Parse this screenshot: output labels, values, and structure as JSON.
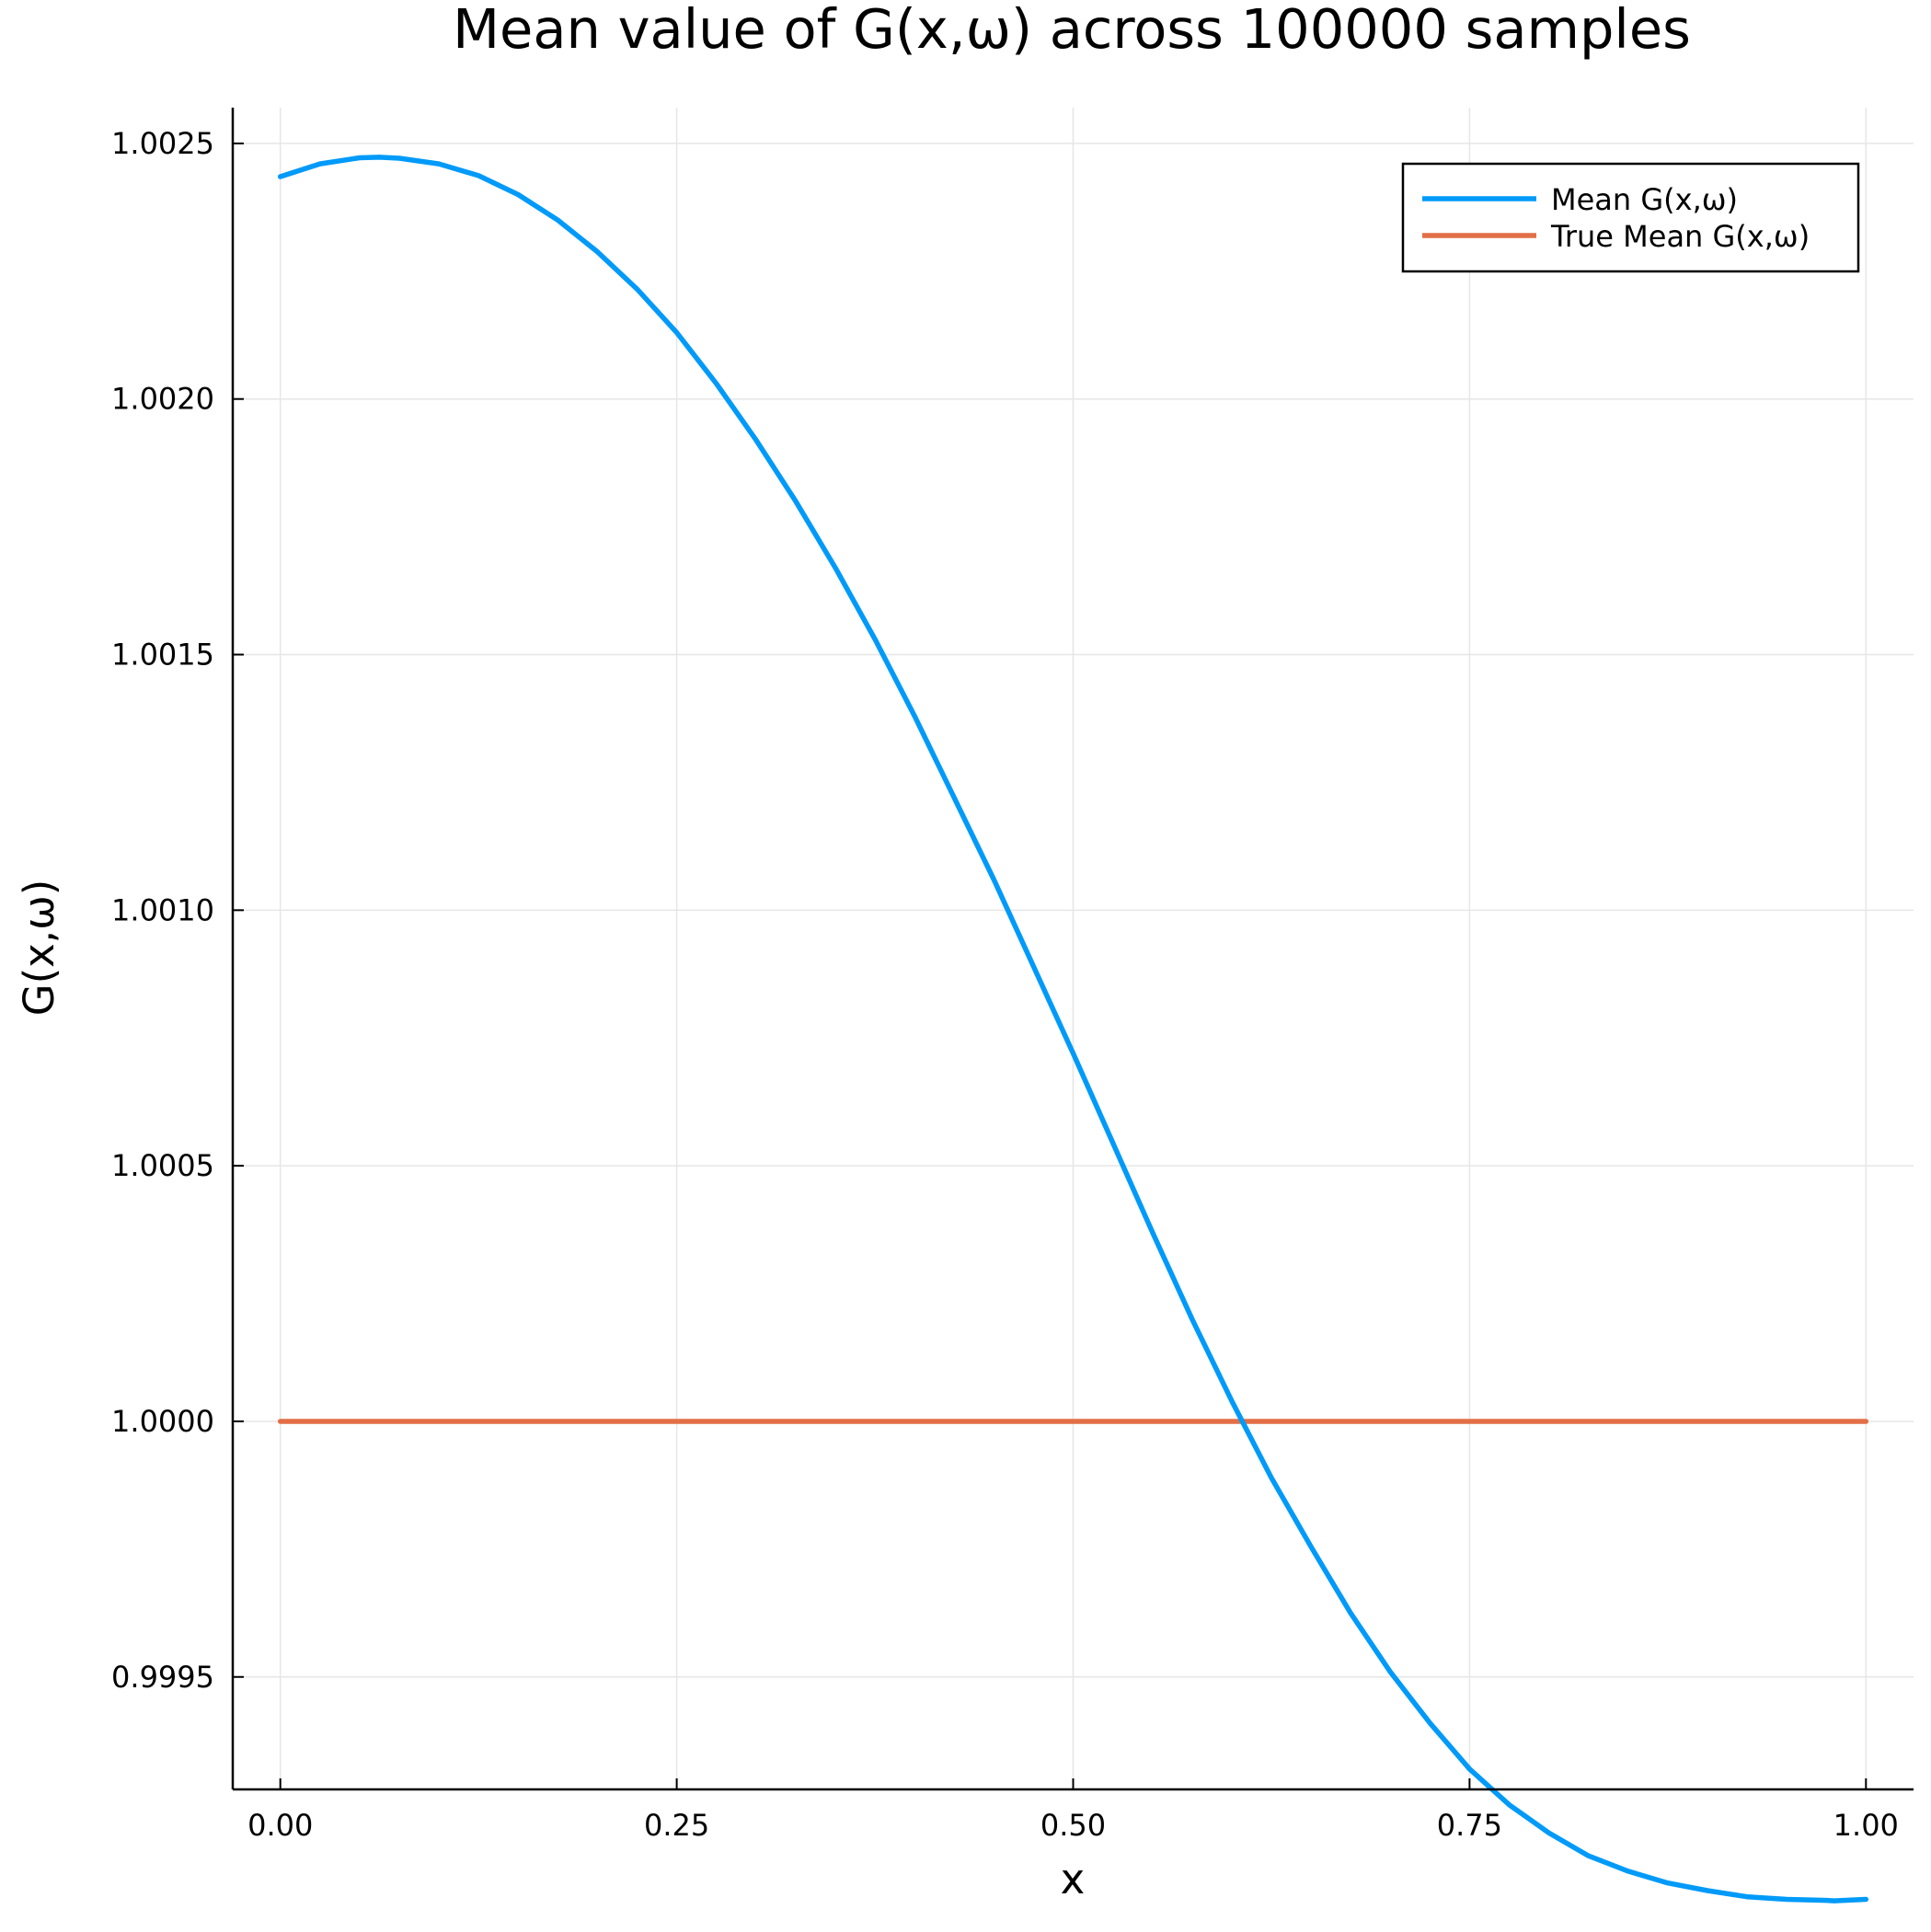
{
  "chart_data": {
    "type": "line",
    "title": "Mean value of G(x,ω) across 100000 samples",
    "xlabel": "x",
    "ylabel": "G(x,ω)",
    "xlim": [
      -0.03,
      1.03
    ],
    "ylim": [
      0.99928,
      1.00257
    ],
    "xticks": [
      0.0,
      0.25,
      0.5,
      0.75,
      1.0
    ],
    "xtick_labels": [
      "0.00",
      "0.25",
      "0.50",
      "0.75",
      "1.00"
    ],
    "yticks": [
      0.9995,
      1.0,
      1.0005,
      1.001,
      1.0015,
      1.002,
      1.0025
    ],
    "ytick_labels": [
      "0.9995",
      "1.0000",
      "1.0005",
      "1.0010",
      "1.0015",
      "1.0020",
      "1.0025"
    ],
    "grid": true,
    "legend_position": "top-right",
    "series": [
      {
        "name": "Mean G(x,ω)",
        "color": "#009af9",
        "x": [
          0.0,
          0.025,
          0.05,
          0.0625,
          0.075,
          0.1,
          0.125,
          0.15,
          0.175,
          0.2,
          0.225,
          0.25,
          0.275,
          0.3,
          0.325,
          0.35,
          0.375,
          0.4,
          0.425,
          0.45,
          0.475,
          0.5,
          0.525,
          0.55,
          0.575,
          0.6,
          0.625,
          0.65,
          0.675,
          0.7,
          0.725,
          0.75,
          0.775,
          0.8,
          0.825,
          0.85,
          0.875,
          0.9,
          0.925,
          0.95,
          0.975,
          0.98,
          1.0
        ],
        "y": [
          1.002435,
          1.00246,
          1.002472,
          1.002473,
          1.002471,
          1.00246,
          1.002437,
          1.0024,
          1.00235,
          1.002288,
          1.002215,
          1.00213,
          1.00203,
          1.00192,
          1.0018,
          1.00167,
          1.00153,
          1.00138,
          1.00122,
          1.00106,
          1.00089,
          1.00072,
          1.000545,
          1.00037,
          1.0002,
          1.00004,
          0.99989,
          0.999755,
          0.999625,
          0.99951,
          0.99941,
          0.99932,
          0.99925,
          0.999195,
          0.99915,
          0.99912,
          0.999097,
          0.999082,
          0.99907,
          0.999065,
          0.999063,
          0.999062,
          0.999065
        ]
      },
      {
        "name": "True Mean G(x,ω)",
        "color": "#e26f46",
        "x": [
          0.0,
          1.0
        ],
        "y": [
          1.0,
          1.0
        ]
      }
    ]
  }
}
